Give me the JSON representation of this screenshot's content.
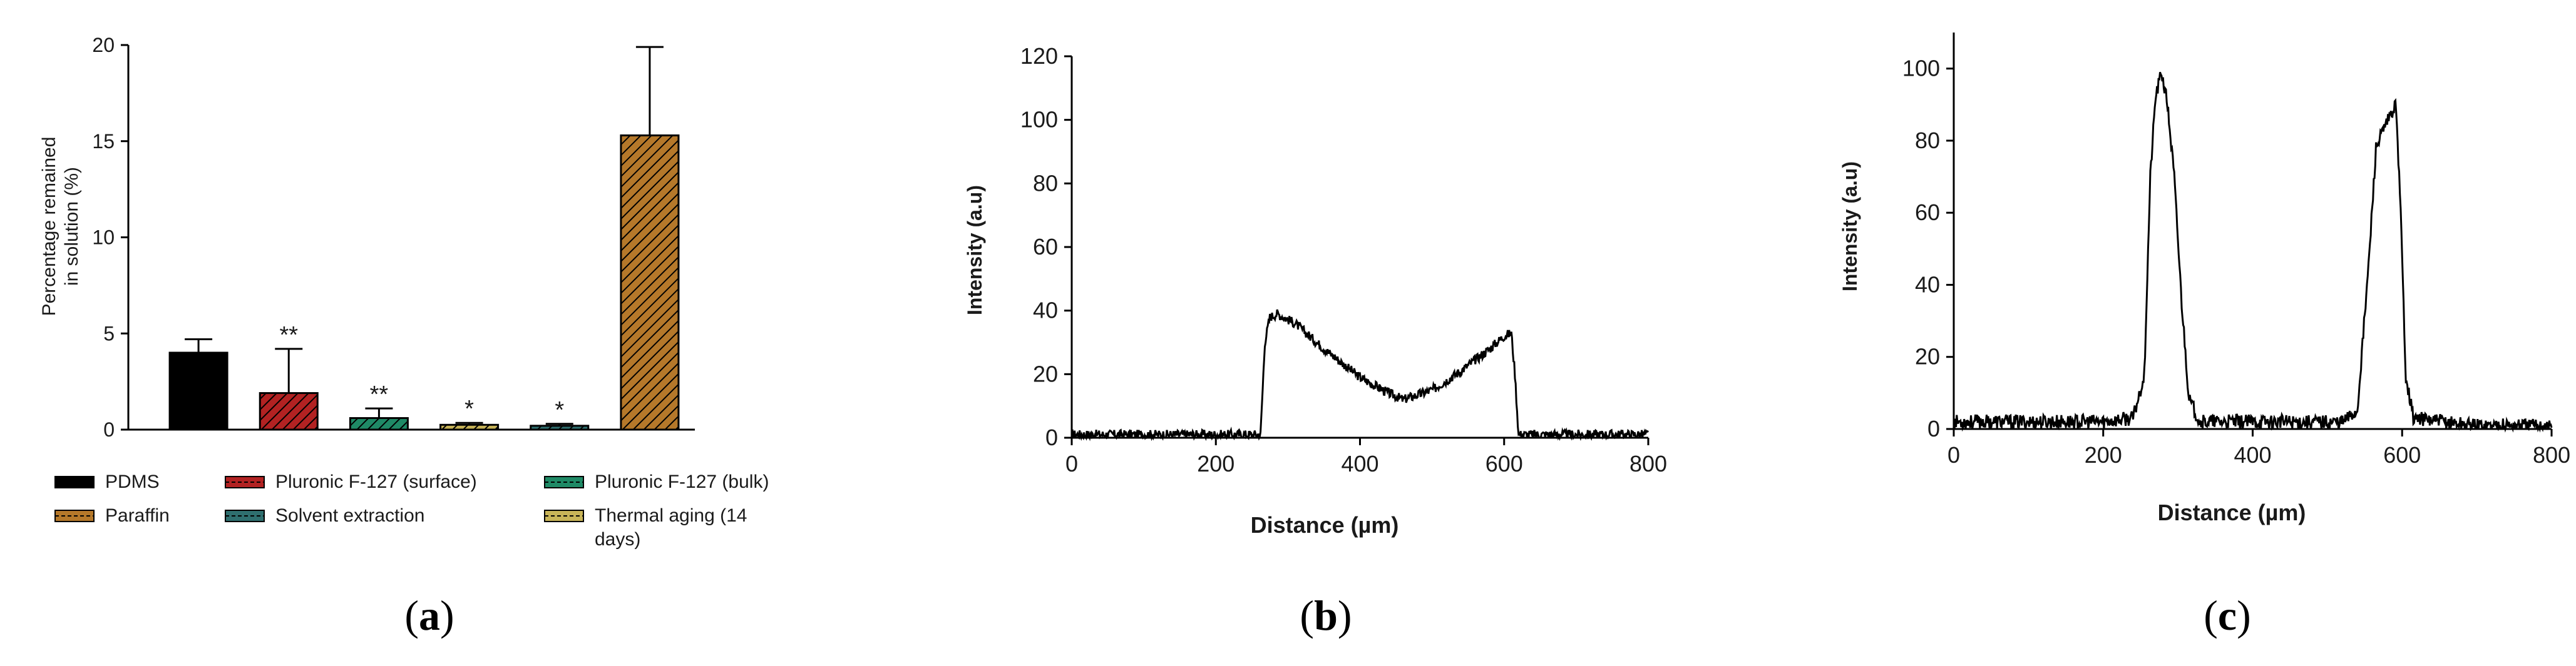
{
  "panels": [
    {
      "label": "a"
    },
    {
      "label": "b"
    },
    {
      "label": "c"
    }
  ],
  "chart_data": [
    {
      "id": "a",
      "type": "bar",
      "ylabel_lines": [
        "Percentage remained",
        "in solution (%)"
      ],
      "ylim": [
        0,
        20
      ],
      "yticks": [
        0,
        5,
        10,
        15,
        20
      ],
      "categories": [
        "PDMS",
        "Pluronic F-127 (surface)",
        "Pluronic F-127 (bulk)",
        "Thermal aging (14 days)",
        "Solvent extraction",
        "Paraffin"
      ],
      "values": [
        4.0,
        1.9,
        0.6,
        0.25,
        0.2,
        15.3
      ],
      "error_plus": [
        0.7,
        2.3,
        0.5,
        0.1,
        0.1,
        4.6
      ],
      "significance": [
        "",
        "**",
        "**",
        "*",
        "*",
        ""
      ],
      "colors": [
        "#000000",
        "#b22222",
        "#1f8a66",
        "#c8b458",
        "#2f6f6f",
        "#b5782a"
      ],
      "hatch": [
        false,
        true,
        true,
        true,
        true,
        true
      ],
      "legend": [
        {
          "label": "PDMS",
          "row": 0,
          "col": 0
        },
        {
          "label": "Pluronic F-127 (surface)",
          "row": 0,
          "col": 1
        },
        {
          "label": "Pluronic F-127 (bulk)",
          "row": 0,
          "col": 2
        },
        {
          "label": "Paraffin",
          "row": 1,
          "col": 0
        },
        {
          "label": "Solvent extraction",
          "row": 1,
          "col": 1
        },
        {
          "label_lines": [
            "Thermal aging (14",
            "days)"
          ],
          "row": 1,
          "col": 2
        }
      ],
      "legend_colors": [
        "#000000",
        "#b22222",
        "#1f8a66",
        "#b5782a",
        "#2f6f6f",
        "#c8b458"
      ],
      "legend_placement": "below"
    },
    {
      "id": "b",
      "type": "line",
      "xlabel": "Distance (µm)",
      "ylabel": "Intensity (a.u)",
      "xlim": [
        0,
        800
      ],
      "ylim": [
        0,
        120
      ],
      "xticks": [
        0,
        200,
        400,
        600,
        800
      ],
      "yticks": [
        0,
        20,
        40,
        60,
        80,
        100,
        120
      ],
      "profile": [
        [
          0,
          1
        ],
        [
          200,
          1
        ],
        [
          262,
          1
        ],
        [
          268,
          30
        ],
        [
          275,
          38
        ],
        [
          285,
          39
        ],
        [
          310,
          36
        ],
        [
          350,
          28
        ],
        [
          400,
          19
        ],
        [
          440,
          14
        ],
        [
          460,
          12
        ],
        [
          500,
          15
        ],
        [
          540,
          21
        ],
        [
          580,
          28
        ],
        [
          600,
          32
        ],
        [
          610,
          33
        ],
        [
          615,
          20
        ],
        [
          620,
          1
        ],
        [
          700,
          1
        ],
        [
          800,
          1
        ]
      ],
      "noise": 1.5
    },
    {
      "id": "c",
      "type": "line",
      "xlabel": "Distance (µm)",
      "ylabel": "Intensity (a.u)",
      "xlim": [
        0,
        800
      ],
      "ylim": [
        0,
        110
      ],
      "xticks": [
        0,
        200,
        400,
        600,
        800
      ],
      "yticks": [
        0,
        20,
        40,
        60,
        80,
        100
      ],
      "profile": [
        [
          0,
          2
        ],
        [
          200,
          2
        ],
        [
          240,
          3
        ],
        [
          255,
          15
        ],
        [
          263,
          70
        ],
        [
          270,
          92
        ],
        [
          278,
          99
        ],
        [
          286,
          90
        ],
        [
          295,
          70
        ],
        [
          305,
          35
        ],
        [
          315,
          8
        ],
        [
          330,
          2
        ],
        [
          520,
          2
        ],
        [
          540,
          5
        ],
        [
          555,
          45
        ],
        [
          565,
          78
        ],
        [
          580,
          85
        ],
        [
          592,
          90
        ],
        [
          598,
          60
        ],
        [
          605,
          15
        ],
        [
          615,
          3
        ],
        [
          700,
          1
        ],
        [
          800,
          1
        ]
      ],
      "noise": 2.0
    }
  ]
}
